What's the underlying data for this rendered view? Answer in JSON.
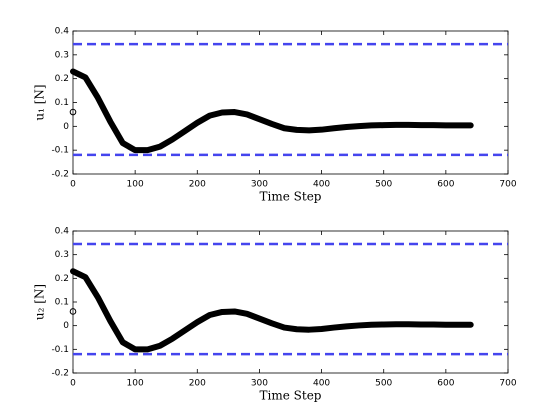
{
  "chart_data": [
    {
      "type": "line",
      "xlabel": "Time Step",
      "ylabel": "u₁ [N]",
      "xlim": [
        0,
        700
      ],
      "xticks": [
        0,
        100,
        200,
        300,
        400,
        500,
        600,
        700
      ],
      "ylim": [
        -0.2,
        0.4
      ],
      "yticks": [
        -0.2,
        -0.1,
        0,
        0.1,
        0.2,
        0.3,
        0.4
      ],
      "series": [
        {
          "color": "#000000",
          "x": [
            0,
            20,
            40,
            60,
            80,
            100,
            120,
            140,
            160,
            180,
            200,
            220,
            240,
            260,
            280,
            300,
            320,
            340,
            360,
            380,
            400,
            420,
            440,
            460,
            480,
            500,
            520,
            540,
            560,
            580,
            600,
            620,
            640
          ],
          "values": [
            0.23,
            0.205,
            0.12,
            0.02,
            -0.07,
            -0.1,
            -0.1,
            -0.085,
            -0.055,
            -0.02,
            0.015,
            0.045,
            0.058,
            0.06,
            0.05,
            0.03,
            0.01,
            -0.008,
            -0.015,
            -0.017,
            -0.014,
            -0.008,
            -0.003,
            0.001,
            0.004,
            0.005,
            0.006,
            0.006,
            0.005,
            0.005,
            0.004,
            0.004,
            0.004
          ]
        },
        {
          "color": "#000000",
          "marker": "open-circle",
          "x": [
            0
          ],
          "values": [
            0.06
          ]
        }
      ],
      "hlines": [
        {
          "value": 0.345,
          "color": "#4545ee",
          "style": "dashed"
        },
        {
          "value": -0.12,
          "color": "#4545ee",
          "style": "dashed"
        }
      ]
    },
    {
      "type": "line",
      "xlabel": "Time Step",
      "ylabel": "u₂ [N]",
      "xlim": [
        0,
        700
      ],
      "xticks": [
        0,
        100,
        200,
        300,
        400,
        500,
        600,
        700
      ],
      "ylim": [
        -0.2,
        0.4
      ],
      "yticks": [
        -0.2,
        -0.1,
        0,
        0.1,
        0.2,
        0.3,
        0.4
      ],
      "series": [
        {
          "color": "#000000",
          "x": [
            0,
            20,
            40,
            60,
            80,
            100,
            120,
            140,
            160,
            180,
            200,
            220,
            240,
            260,
            280,
            300,
            320,
            340,
            360,
            380,
            400,
            420,
            440,
            460,
            480,
            500,
            520,
            540,
            560,
            580,
            600,
            620,
            640
          ],
          "values": [
            0.23,
            0.205,
            0.12,
            0.02,
            -0.07,
            -0.1,
            -0.1,
            -0.085,
            -0.055,
            -0.02,
            0.015,
            0.045,
            0.058,
            0.06,
            0.05,
            0.03,
            0.01,
            -0.008,
            -0.015,
            -0.017,
            -0.014,
            -0.008,
            -0.003,
            0.001,
            0.004,
            0.005,
            0.006,
            0.006,
            0.005,
            0.005,
            0.004,
            0.004,
            0.004
          ]
        },
        {
          "color": "#000000",
          "marker": "open-circle",
          "x": [
            0
          ],
          "values": [
            0.06
          ]
        }
      ],
      "hlines": [
        {
          "value": 0.345,
          "color": "#4545ee",
          "style": "dashed"
        },
        {
          "value": -0.12,
          "color": "#4545ee",
          "style": "dashed"
        }
      ]
    }
  ]
}
